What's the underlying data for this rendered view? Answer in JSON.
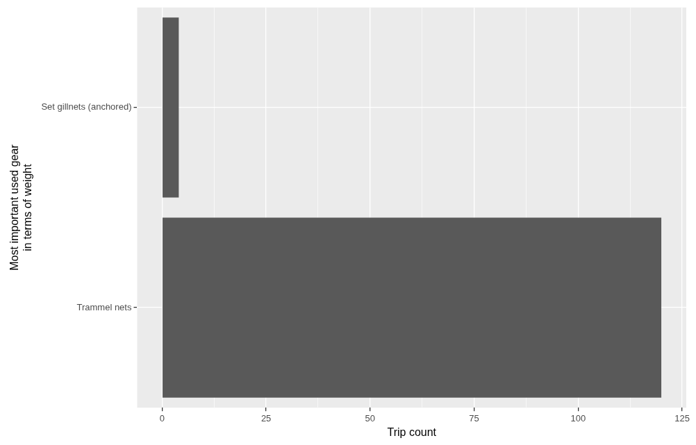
{
  "chart_data": {
    "type": "bar",
    "orientation": "horizontal",
    "xlabel": "Trip count",
    "ylabel": "Most important used gear\nin terms of weight",
    "categories": [
      "Set gillnets (anchored)",
      "Trammel nets"
    ],
    "values": [
      4,
      120
    ],
    "color": "#595959",
    "xlim": [
      -6,
      126
    ],
    "xticks": [
      0,
      {
        "value": 12.5,
        "label": null
      },
      25,
      {
        "value": 37.5,
        "label": null
      },
      50,
      {
        "value": 62.5,
        "label": null
      },
      75,
      {
        "value": 87.5,
        "label": null
      },
      100,
      {
        "value": 112.5,
        "label": null
      },
      125
    ],
    "grid": true,
    "legend": false
  }
}
